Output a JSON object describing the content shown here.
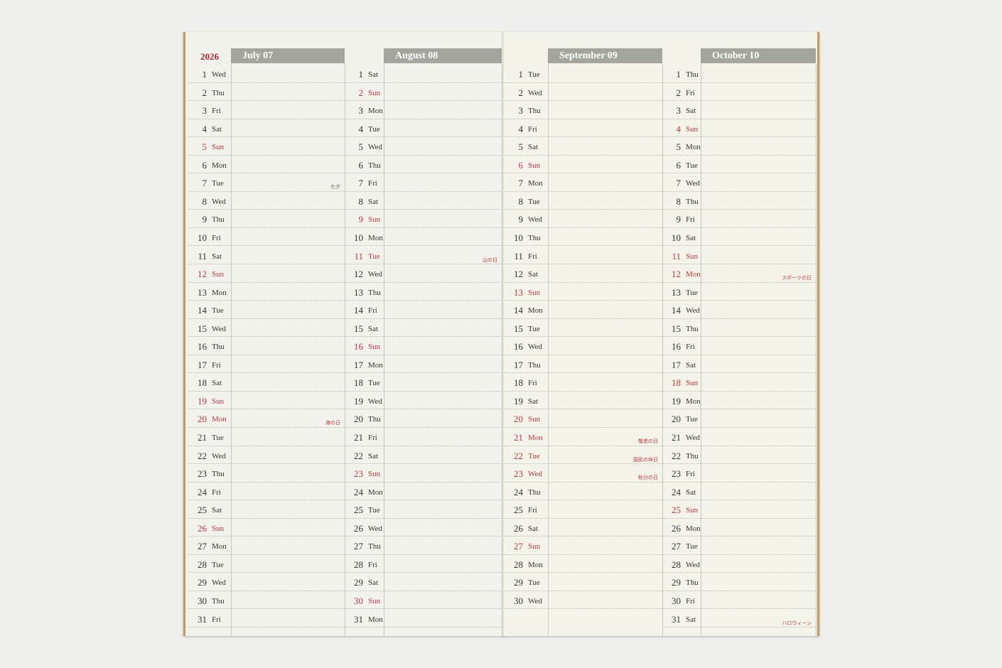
{
  "year": "2026",
  "months": [
    {
      "title": "July 07",
      "days": [
        [
          "1",
          "Wed"
        ],
        [
          "2",
          "Thu"
        ],
        [
          "3",
          "Fri"
        ],
        [
          "4",
          "Sat"
        ],
        [
          "5",
          "Sun"
        ],
        [
          "6",
          "Mon"
        ],
        [
          "7",
          "Tue"
        ],
        [
          "8",
          "Wed"
        ],
        [
          "9",
          "Thu"
        ],
        [
          "10",
          "Fri"
        ],
        [
          "11",
          "Sat"
        ],
        [
          "12",
          "Sun"
        ],
        [
          "13",
          "Mon"
        ],
        [
          "14",
          "Tue"
        ],
        [
          "15",
          "Wed"
        ],
        [
          "16",
          "Thu"
        ],
        [
          "17",
          "Fri"
        ],
        [
          "18",
          "Sat"
        ],
        [
          "19",
          "Sun"
        ],
        [
          "20",
          "Mon"
        ],
        [
          "21",
          "Tue"
        ],
        [
          "22",
          "Wed"
        ],
        [
          "23",
          "Thu"
        ],
        [
          "24",
          "Fri"
        ],
        [
          "25",
          "Sat"
        ],
        [
          "26",
          "Sun"
        ],
        [
          "27",
          "Mon"
        ],
        [
          "28",
          "Tue"
        ],
        [
          "29",
          "Wed"
        ],
        [
          "30",
          "Thu"
        ],
        [
          "31",
          "Fri"
        ]
      ],
      "red": [
        5,
        12,
        19,
        20,
        26
      ],
      "holidays": {
        "7": "七夕",
        "20": "海の日"
      }
    },
    {
      "title": "August 08",
      "days": [
        [
          "1",
          "Sat"
        ],
        [
          "2",
          "Sun"
        ],
        [
          "3",
          "Mon"
        ],
        [
          "4",
          "Tue"
        ],
        [
          "5",
          "Wed"
        ],
        [
          "6",
          "Thu"
        ],
        [
          "7",
          "Fri"
        ],
        [
          "8",
          "Sat"
        ],
        [
          "9",
          "Sun"
        ],
        [
          "10",
          "Mon"
        ],
        [
          "11",
          "Tue"
        ],
        [
          "12",
          "Wed"
        ],
        [
          "13",
          "Thu"
        ],
        [
          "14",
          "Fri"
        ],
        [
          "15",
          "Sat"
        ],
        [
          "16",
          "Sun"
        ],
        [
          "17",
          "Mon"
        ],
        [
          "18",
          "Tue"
        ],
        [
          "19",
          "Wed"
        ],
        [
          "20",
          "Thu"
        ],
        [
          "21",
          "Fri"
        ],
        [
          "22",
          "Sat"
        ],
        [
          "23",
          "Sun"
        ],
        [
          "24",
          "Mon"
        ],
        [
          "25",
          "Tue"
        ],
        [
          "26",
          "Wed"
        ],
        [
          "27",
          "Thu"
        ],
        [
          "28",
          "Fri"
        ],
        [
          "29",
          "Sat"
        ],
        [
          "30",
          "Sun"
        ],
        [
          "31",
          "Mon"
        ]
      ],
      "red": [
        2,
        9,
        11,
        16,
        23,
        30
      ],
      "holidays": {
        "11": "山の日"
      }
    },
    {
      "title": "September 09",
      "days": [
        [
          "1",
          "Tue"
        ],
        [
          "2",
          "Wed"
        ],
        [
          "3",
          "Thu"
        ],
        [
          "4",
          "Fri"
        ],
        [
          "5",
          "Sat"
        ],
        [
          "6",
          "Sun"
        ],
        [
          "7",
          "Mon"
        ],
        [
          "8",
          "Tue"
        ],
        [
          "9",
          "Wed"
        ],
        [
          "10",
          "Thu"
        ],
        [
          "11",
          "Fri"
        ],
        [
          "12",
          "Sat"
        ],
        [
          "13",
          "Sun"
        ],
        [
          "14",
          "Mon"
        ],
        [
          "15",
          "Tue"
        ],
        [
          "16",
          "Wed"
        ],
        [
          "17",
          "Thu"
        ],
        [
          "18",
          "Fri"
        ],
        [
          "19",
          "Sat"
        ],
        [
          "20",
          "Sun"
        ],
        [
          "21",
          "Mon"
        ],
        [
          "22",
          "Tue"
        ],
        [
          "23",
          "Wed"
        ],
        [
          "24",
          "Thu"
        ],
        [
          "25",
          "Fri"
        ],
        [
          "26",
          "Sat"
        ],
        [
          "27",
          "Sun"
        ],
        [
          "28",
          "Mon"
        ],
        [
          "29",
          "Tue"
        ],
        [
          "30",
          "Wed"
        ]
      ],
      "red": [
        6,
        13,
        20,
        21,
        22,
        23,
        27
      ],
      "holidays": {
        "21": "敬老の日",
        "22": "国民の休日",
        "23": "秋分の日"
      }
    },
    {
      "title": "October 10",
      "days": [
        [
          "1",
          "Thu"
        ],
        [
          "2",
          "Fri"
        ],
        [
          "3",
          "Sat"
        ],
        [
          "4",
          "Sun"
        ],
        [
          "5",
          "Mon"
        ],
        [
          "6",
          "Tue"
        ],
        [
          "7",
          "Wed"
        ],
        [
          "8",
          "Thu"
        ],
        [
          "9",
          "Fri"
        ],
        [
          "10",
          "Sat"
        ],
        [
          "11",
          "Sun"
        ],
        [
          "12",
          "Mon"
        ],
        [
          "13",
          "Tue"
        ],
        [
          "14",
          "Wed"
        ],
        [
          "15",
          "Thu"
        ],
        [
          "16",
          "Fri"
        ],
        [
          "17",
          "Sat"
        ],
        [
          "18",
          "Sun"
        ],
        [
          "19",
          "Mon"
        ],
        [
          "20",
          "Tue"
        ],
        [
          "21",
          "Wed"
        ],
        [
          "22",
          "Thu"
        ],
        [
          "23",
          "Fri"
        ],
        [
          "24",
          "Sat"
        ],
        [
          "25",
          "Sun"
        ],
        [
          "26",
          "Mon"
        ],
        [
          "27",
          "Tue"
        ],
        [
          "28",
          "Wed"
        ],
        [
          "29",
          "Thu"
        ],
        [
          "30",
          "Fri"
        ],
        [
          "31",
          "Sat"
        ]
      ],
      "red": [
        4,
        11,
        12,
        18,
        25
      ],
      "holidays": {
        "12": "スポーツの日",
        "31": "ハロウィーン"
      }
    }
  ],
  "colors": {
    "accent_red": "#c0393b",
    "header_gray": "#a4a69e",
    "binding_kraft": "#c39a62"
  }
}
